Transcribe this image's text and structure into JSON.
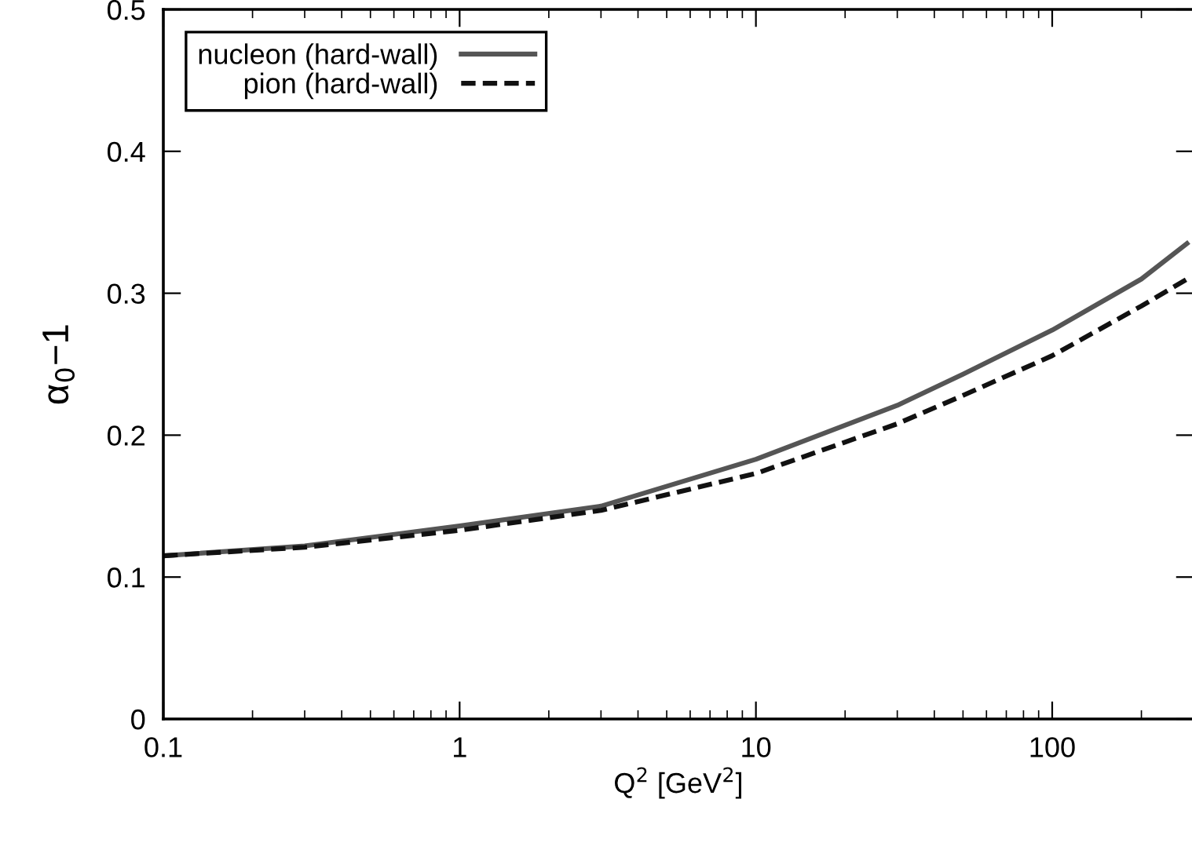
{
  "chart_data": {
    "type": "line",
    "xlabel": "Q$^{2}$ [GeV$^{2}$]",
    "ylabel": "α$_{0}$−1",
    "log": "x",
    "xlim": [
      0.1,
      300
    ],
    "xticks": [
      0.1,
      1,
      10,
      100
    ],
    "ylim": [
      0,
      0.5
    ],
    "yticks": [
      0,
      0.1,
      0.2,
      0.3,
      0.4,
      0.5
    ],
    "grid": false,
    "legend": "top left",
    "series": [
      {
        "name": "nucleon (hard-wall)",
        "color": "#555555",
        "line_style": "solid",
        "x": [
          0.1,
          0.3,
          1,
          3,
          10,
          30,
          50,
          100,
          200,
          285
        ],
        "values": [
          0.115,
          0.122,
          0.136,
          0.15,
          0.183,
          0.221,
          0.243,
          0.274,
          0.31,
          0.335
        ]
      },
      {
        "name": "pion (hard-wall)",
        "color": "#111111",
        "line_style": "dashed",
        "x": [
          0.1,
          0.3,
          1,
          3,
          10,
          30,
          50,
          100,
          200,
          285
        ],
        "values": [
          0.115,
          0.121,
          0.133,
          0.147,
          0.173,
          0.208,
          0.228,
          0.256,
          0.291,
          0.31
        ]
      }
    ]
  }
}
